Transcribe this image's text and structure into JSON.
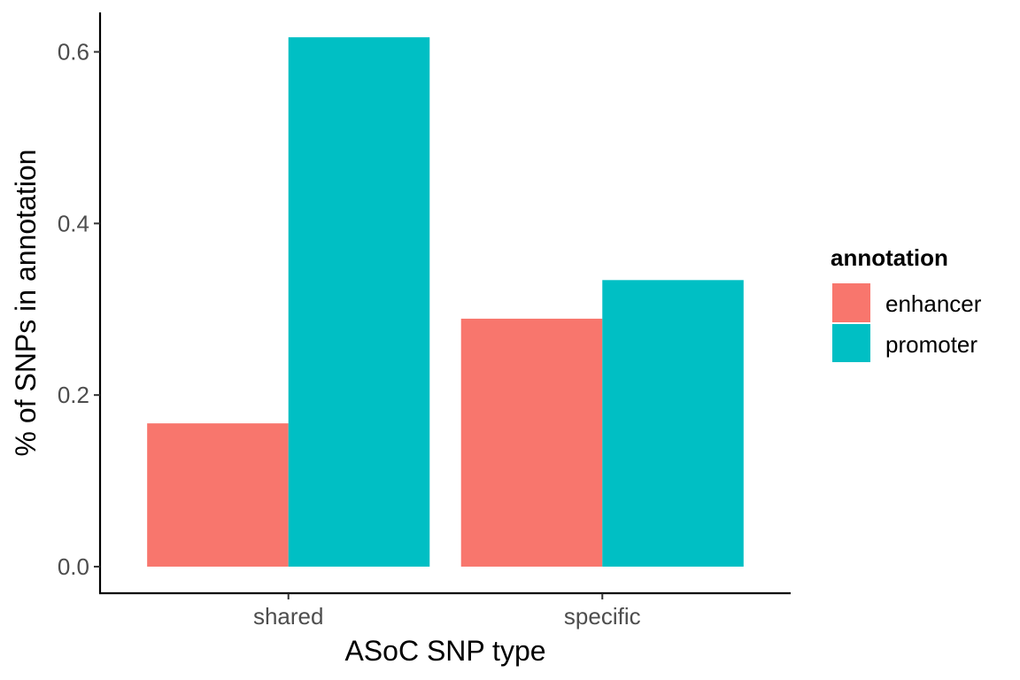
{
  "chart_data": {
    "type": "bar",
    "categories": [
      "shared",
      "specific"
    ],
    "series": [
      {
        "name": "enhancer",
        "values": [
          0.167,
          0.289
        ],
        "color": "#F8766D"
      },
      {
        "name": "promoter",
        "values": [
          0.617,
          0.334
        ],
        "color": "#00BFC4"
      }
    ],
    "xlabel": "ASoC SNP type",
    "ylabel": "% of SNPs in annotation",
    "ylim": [
      -0.031,
      0.646
    ],
    "yticks": [
      0.0,
      0.2,
      0.4,
      0.6
    ],
    "ytick_labels": [
      "0.0",
      "0.2",
      "0.4",
      "0.6"
    ],
    "grid": false,
    "legend": {
      "title": "annotation",
      "placement": "right",
      "items": [
        "enhancer",
        "promoter"
      ]
    }
  }
}
